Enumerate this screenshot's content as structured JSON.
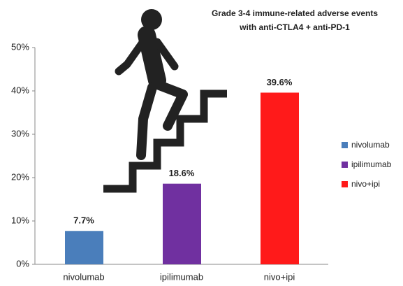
{
  "chart_data": {
    "type": "bar",
    "title": [
      "Grade 3-4 immune-related  adverse events",
      "with anti-CTLA4 + anti-PD-1"
    ],
    "categories": [
      "nivolumab",
      "ipilimumab",
      "nivo+ipi"
    ],
    "values": [
      7.7,
      18.6,
      39.6
    ],
    "value_labels": [
      "7.7%",
      "18.6%",
      "39.6%"
    ],
    "colors": [
      "#4a7ebb",
      "#7030a0",
      "#ff1a1a"
    ],
    "ylim": [
      0,
      50
    ],
    "yticks": [
      {
        "value": 0,
        "label": "0%"
      },
      {
        "value": 10,
        "label": "10%"
      },
      {
        "value": 20,
        "label": "20%"
      },
      {
        "value": 30,
        "label": "30%"
      },
      {
        "value": 40,
        "label": "40%"
      },
      {
        "value": 50,
        "label": "50%"
      }
    ],
    "grid": false,
    "legend": "right"
  }
}
